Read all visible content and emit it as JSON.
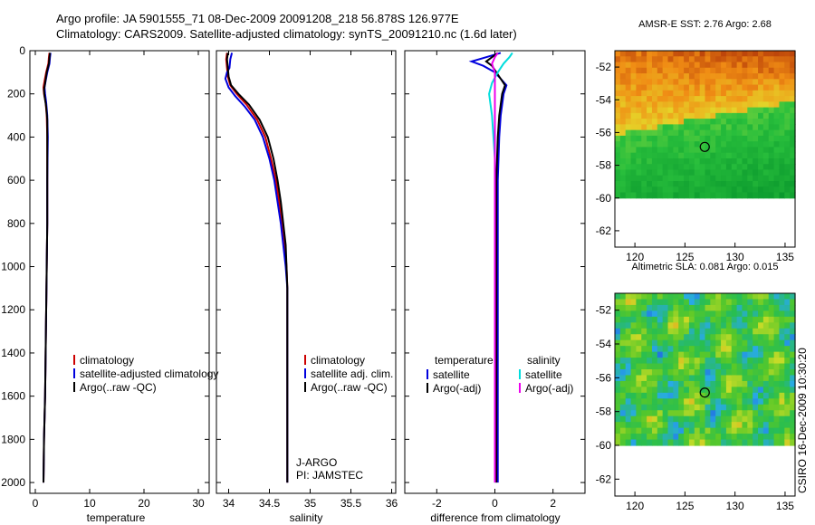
{
  "header": {
    "line1": "Argo profile: JA 5901555_71 08-Dec-2009 20091208_218 56.878S 126.977E",
    "line2": "Climatology: CARS2009. Satellite-adjusted climatology: synTS_20091210.nc (1.6d later)"
  },
  "credit": "CSIRO 16-Dec-2009 10:30:20",
  "colors": {
    "climatology": "#cc0000",
    "satellite": "#0000dd",
    "argo": "#000000",
    "salinity_satellite": "#00dddd",
    "salinity_argo": "#ee00ee"
  },
  "chart_data": [
    {
      "type": "line",
      "name": "temperature",
      "xlabel": "temperature",
      "ylabel": "",
      "xlim": [
        -1,
        32
      ],
      "ylim": [
        2050,
        0
      ],
      "xticks": [
        0,
        10,
        20,
        30
      ],
      "xtick_labels": [
        "0",
        "10",
        "20",
        "30"
      ],
      "yticks": [
        0,
        200,
        400,
        600,
        800,
        1000,
        1200,
        1400,
        1600,
        1800,
        2000
      ],
      "ytick_labels": [
        "0",
        "200",
        "400",
        "600",
        "800",
        "1000",
        "1200",
        "1400",
        "1600",
        "1800",
        "2000"
      ],
      "legend": [
        "climatology",
        "satellite-adjusted climatology",
        "Argo(..raw -QC)"
      ],
      "series": [
        {
          "name": "climatology",
          "color": "climatology",
          "points": [
            [
              2.6,
              10
            ],
            [
              2.5,
              30
            ],
            [
              2.4,
              60
            ],
            [
              2.0,
              100
            ],
            [
              1.7,
              140
            ],
            [
              1.5,
              170
            ],
            [
              1.6,
              200
            ],
            [
              1.9,
              240
            ],
            [
              2.1,
              300
            ],
            [
              2.2,
              400
            ],
            [
              2.2,
              600
            ],
            [
              2.2,
              800
            ],
            [
              2.1,
              1000
            ],
            [
              2.0,
              1200
            ],
            [
              1.9,
              1400
            ],
            [
              1.8,
              1600
            ],
            [
              1.6,
              1800
            ],
            [
              1.5,
              2000
            ]
          ]
        },
        {
          "name": "satellite",
          "color": "satellite",
          "points": [
            [
              2.8,
              10
            ],
            [
              2.7,
              30
            ],
            [
              2.6,
              60
            ],
            [
              2.2,
              100
            ],
            [
              1.9,
              140
            ],
            [
              1.7,
              170
            ],
            [
              1.8,
              200
            ],
            [
              2.0,
              240
            ],
            [
              2.2,
              300
            ],
            [
              2.3,
              400
            ],
            [
              2.2,
              600
            ],
            [
              2.2,
              800
            ],
            [
              2.1,
              1000
            ],
            [
              2.0,
              1200
            ],
            [
              1.9,
              1400
            ],
            [
              1.8,
              1600
            ],
            [
              1.6,
              1800
            ],
            [
              1.5,
              2000
            ]
          ]
        },
        {
          "name": "Argo",
          "color": "argo",
          "points": [
            [
              2.7,
              10
            ],
            [
              2.6,
              30
            ],
            [
              2.5,
              60
            ],
            [
              2.1,
              100
            ],
            [
              1.8,
              150
            ],
            [
              1.6,
              180
            ],
            [
              1.7,
              210
            ],
            [
              2.0,
              260
            ],
            [
              2.2,
              320
            ],
            [
              2.2,
              400
            ],
            [
              2.2,
              600
            ],
            [
              2.2,
              800
            ],
            [
              2.1,
              1000
            ],
            [
              2.0,
              1200
            ],
            [
              1.9,
              1400
            ],
            [
              1.8,
              1600
            ],
            [
              1.6,
              1800
            ],
            [
              1.5,
              2000
            ]
          ]
        }
      ]
    },
    {
      "type": "line",
      "name": "salinity",
      "xlabel": "salinity",
      "ylabel": "",
      "xlim": [
        33.85,
        36.05
      ],
      "ylim": [
        2050,
        0
      ],
      "xticks": [
        34,
        34.5,
        35,
        35.5,
        36
      ],
      "xtick_labels": [
        "34",
        "34.5",
        "35",
        "35.5",
        "36"
      ],
      "legend": [
        "climatology",
        "satellite adj. clim.",
        "Argo(..raw -QC)"
      ],
      "annotations": [
        "J-ARGO",
        "PI: JAMSTEC"
      ],
      "series": [
        {
          "name": "climatology",
          "color": "climatology",
          "points": [
            [
              33.98,
              10
            ],
            [
              33.97,
              40
            ],
            [
              33.98,
              80
            ],
            [
              33.99,
              120
            ],
            [
              34.02,
              160
            ],
            [
              34.1,
              200
            ],
            [
              34.22,
              250
            ],
            [
              34.35,
              320
            ],
            [
              34.45,
              400
            ],
            [
              34.52,
              500
            ],
            [
              34.58,
              600
            ],
            [
              34.62,
              700
            ],
            [
              34.66,
              800
            ],
            [
              34.69,
              900
            ],
            [
              34.71,
              1000
            ],
            [
              34.72,
              1100
            ],
            [
              34.72,
              1200
            ],
            [
              34.72,
              1400
            ],
            [
              34.72,
              1600
            ],
            [
              34.72,
              1800
            ],
            [
              34.72,
              2000
            ]
          ]
        },
        {
          "name": "satellite",
          "color": "satellite",
          "points": [
            [
              34.04,
              10
            ],
            [
              34.02,
              40
            ],
            [
              34.01,
              80
            ],
            [
              33.98,
              100
            ],
            [
              33.96,
              130
            ],
            [
              34.0,
              170
            ],
            [
              34.08,
              210
            ],
            [
              34.2,
              260
            ],
            [
              34.32,
              320
            ],
            [
              34.42,
              400
            ],
            [
              34.5,
              500
            ],
            [
              34.56,
              600
            ],
            [
              34.6,
              700
            ],
            [
              34.64,
              800
            ],
            [
              34.67,
              900
            ],
            [
              34.7,
              1000
            ],
            [
              34.72,
              1100
            ],
            [
              34.72,
              1200
            ],
            [
              34.72,
              1400
            ],
            [
              34.72,
              1600
            ],
            [
              34.72,
              1800
            ],
            [
              34.72,
              2000
            ]
          ]
        },
        {
          "name": "Argo",
          "color": "argo",
          "points": [
            [
              33.99,
              10
            ],
            [
              33.98,
              40
            ],
            [
              33.99,
              80
            ],
            [
              34.0,
              120
            ],
            [
              34.03,
              160
            ],
            [
              34.12,
              200
            ],
            [
              34.25,
              250
            ],
            [
              34.38,
              320
            ],
            [
              34.48,
              400
            ],
            [
              34.55,
              500
            ],
            [
              34.6,
              600
            ],
            [
              34.64,
              700
            ],
            [
              34.67,
              800
            ],
            [
              34.7,
              900
            ],
            [
              34.71,
              1000
            ],
            [
              34.72,
              1100
            ],
            [
              34.72,
              1200
            ],
            [
              34.72,
              1400
            ],
            [
              34.72,
              1600
            ],
            [
              34.72,
              1800
            ],
            [
              34.72,
              2000
            ]
          ]
        }
      ]
    },
    {
      "type": "line",
      "name": "difference",
      "xlabel": "difference from climatology",
      "ylabel": "",
      "xlim": [
        -3.1,
        3.1
      ],
      "ylim": [
        2050,
        0
      ],
      "xticks": [
        -2,
        0,
        2
      ],
      "xtick_labels": [
        "-2",
        "0",
        "2"
      ],
      "legend": [
        {
          "group": "temperature",
          "items": [
            "satellite",
            "Argo(-adj)"
          ]
        },
        {
          "group": "salinity",
          "items": [
            "satellite",
            "Argo(-adj)"
          ]
        }
      ],
      "series": [
        {
          "name": "temperature satellite",
          "color": "satellite",
          "points": [
            [
              0.2,
              10
            ],
            [
              -0.3,
              30
            ],
            [
              -0.8,
              50
            ],
            [
              -0.4,
              70
            ],
            [
              0.0,
              100
            ],
            [
              0.2,
              130
            ],
            [
              0.4,
              160
            ],
            [
              0.3,
              200
            ],
            [
              0.2,
              300
            ],
            [
              0.15,
              400
            ],
            [
              0.1,
              600
            ],
            [
              0.1,
              1000
            ],
            [
              0.1,
              1500
            ],
            [
              0.1,
              2000
            ]
          ]
        },
        {
          "name": "temperature Argo(-adj)",
          "color": "argo",
          "points": [
            [
              0.1,
              10
            ],
            [
              -0.1,
              30
            ],
            [
              -0.3,
              50
            ],
            [
              -0.1,
              70
            ],
            [
              0.05,
              100
            ],
            [
              0.2,
              130
            ],
            [
              0.35,
              160
            ],
            [
              0.25,
              200
            ],
            [
              0.15,
              300
            ],
            [
              0.1,
              400
            ],
            [
              0.05,
              600
            ],
            [
              0.05,
              1000
            ],
            [
              0.05,
              1500
            ],
            [
              0.05,
              2000
            ]
          ]
        },
        {
          "name": "salinity satellite",
          "color": "salinity_satellite",
          "points": [
            [
              0.6,
              10
            ],
            [
              0.5,
              30
            ],
            [
              0.3,
              60
            ],
            [
              0.1,
              100
            ],
            [
              -0.1,
              150
            ],
            [
              -0.2,
              200
            ],
            [
              -0.1,
              300
            ],
            [
              0.0,
              500
            ],
            [
              0.0,
              700
            ],
            [
              0.0,
              1000
            ],
            [
              0.0,
              1500
            ],
            [
              0.0,
              2000
            ]
          ]
        },
        {
          "name": "salinity Argo(-adj)",
          "color": "salinity_argo",
          "points": [
            [
              0.1,
              10
            ],
            [
              0.0,
              30
            ],
            [
              -0.1,
              60
            ],
            [
              0.0,
              100
            ],
            [
              0.0,
              150
            ],
            [
              0.0,
              300
            ],
            [
              0.0,
              600
            ],
            [
              0.0,
              1000
            ],
            [
              0.0,
              1500
            ],
            [
              0.0,
              2000
            ]
          ]
        }
      ]
    },
    {
      "type": "heatmap",
      "name": "sst-map",
      "title": "AMSR-E SST: 2.76 Argo: 2.68",
      "xlim": [
        118,
        136
      ],
      "ylim": [
        -63,
        -51
      ],
      "xticks": [
        120,
        125,
        130,
        135
      ],
      "xtick_labels": [
        "120",
        "125",
        "130",
        "135"
      ],
      "yticks": [
        -52,
        -54,
        -56,
        -58,
        -60,
        -62
      ],
      "ytick_labels": [
        "-52",
        "-54",
        "-56",
        "-58",
        "-60",
        "-62"
      ],
      "data_ylim": [
        -60,
        -51
      ],
      "marker": [
        126.977,
        -56.878
      ]
    },
    {
      "type": "heatmap",
      "name": "sla-map",
      "title": "Altimetric SLA: 0.081 Argo: 0.015",
      "xlim": [
        118,
        136
      ],
      "ylim": [
        -63,
        -51
      ],
      "xticks": [
        120,
        125,
        130,
        135
      ],
      "xtick_labels": [
        "120",
        "125",
        "130",
        "135"
      ],
      "yticks": [
        -52,
        -54,
        -56,
        -58,
        -60,
        -62
      ],
      "ytick_labels": [
        "-52",
        "-54",
        "-56",
        "-58",
        "-60",
        "-62"
      ],
      "data_ylim": [
        -60,
        -51
      ],
      "marker": [
        126.977,
        -56.878
      ]
    }
  ]
}
